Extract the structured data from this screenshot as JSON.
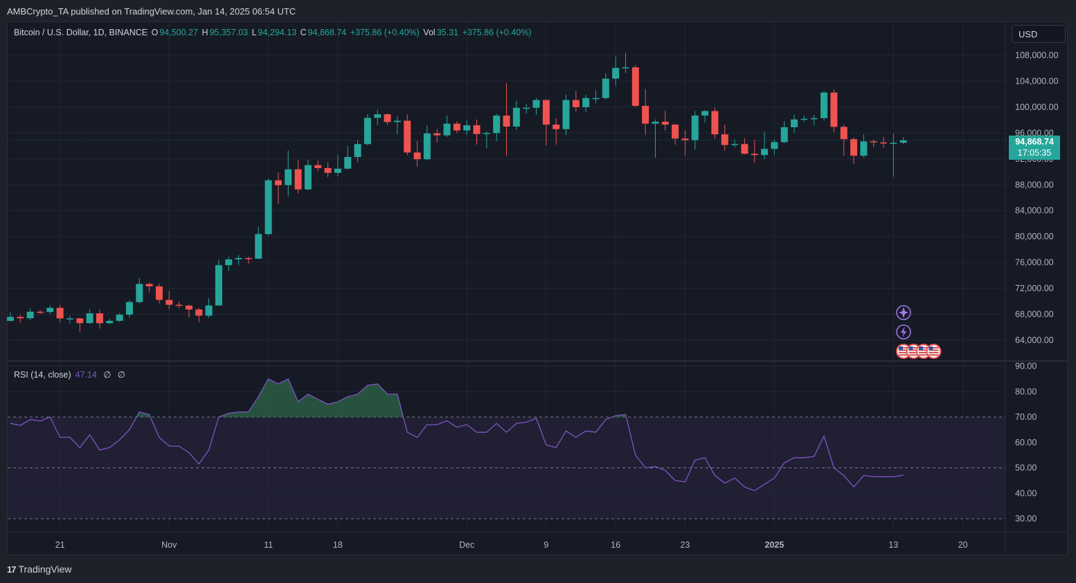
{
  "publisher_line": "AMBCrypto_TA published on TradingView.com, Jan 14, 2025 06:54 UTC",
  "legend": {
    "symbol": "Bitcoin / U.S. Dollar, 1D, BINANCE",
    "o_label": "O",
    "o": "94,500.27",
    "h_label": "H",
    "h": "95,357.03",
    "l_label": "L",
    "l": "94,294.13",
    "c_label": "C",
    "c": "94,868.74",
    "change": "+375.86 (+0.40%)",
    "vol_label": "Vol",
    "vol": "35.31",
    "vol_change": "+375.86 (+0.40%)"
  },
  "currency_button": "USD",
  "last_price": {
    "price": "94,868.74",
    "countdown": "17:05:35"
  },
  "rsi_legend": {
    "title": "RSI (14, close)",
    "value": "47.14",
    "ph1": "∅",
    "ph2": "∅"
  },
  "footer": {
    "logo": "17",
    "brand": "TradingView"
  },
  "colors": {
    "up": "#26a69a",
    "down": "#ef5350",
    "rsi_line": "#7e57c2",
    "rsi_band": "#2a2340",
    "rsi_overbought_fill": "#2e6b4a",
    "background": "#161a25",
    "grid": "#232734"
  },
  "icons": [
    "sparkle-event-icon",
    "lightning-event-icon",
    "us-flag-event-icon",
    "us-flag-event-icon",
    "us-flag-event-icon",
    "us-flag-event-icon"
  ],
  "chart_data": [
    {
      "type": "candlestick",
      "title": "Bitcoin / U.S. Dollar, 1D, BINANCE",
      "ylim": [
        62000,
        110500
      ],
      "grid": true,
      "y_ticks": [
        "64,000.00",
        "68,000.00",
        "72,000.00",
        "76,000.00",
        "80,000.00",
        "84,000.00",
        "88,000.00",
        "92,000.00",
        "96,000.00",
        "100,000.00",
        "104,000.00",
        "108,000.00"
      ],
      "y_tick_values": [
        64000,
        68000,
        72000,
        76000,
        80000,
        84000,
        88000,
        92000,
        96000,
        100000,
        104000,
        108000
      ],
      "x_ticks": [
        {
          "label": "21",
          "date": "2024-10-21"
        },
        {
          "label": "Nov",
          "date": "2024-11-01"
        },
        {
          "label": "11",
          "date": "2024-11-11"
        },
        {
          "label": "18",
          "date": "2024-11-18"
        },
        {
          "label": "Dec",
          "date": "2024-12-01"
        },
        {
          "label": "9",
          "date": "2024-12-09"
        },
        {
          "label": "16",
          "date": "2024-12-16"
        },
        {
          "label": "23",
          "date": "2024-12-23"
        },
        {
          "label": "2025",
          "date": "2025-01-01"
        },
        {
          "label": "13",
          "date": "2025-01-13"
        },
        {
          "label": "20",
          "date": "2025-01-20"
        }
      ],
      "columns": [
        "date",
        "open",
        "high",
        "low",
        "close"
      ],
      "candles": [
        [
          "2024-10-16",
          67000,
          68400,
          66900,
          67600
        ],
        [
          "2024-10-17",
          67600,
          67900,
          66700,
          67400
        ],
        [
          "2024-10-18",
          67400,
          68900,
          67100,
          68400
        ],
        [
          "2024-10-19",
          68400,
          68700,
          68100,
          68360
        ],
        [
          "2024-10-20",
          68360,
          69400,
          68100,
          69000
        ],
        [
          "2024-10-21",
          69000,
          69500,
          66800,
          67370
        ],
        [
          "2024-10-22",
          67370,
          67800,
          66600,
          67380
        ],
        [
          "2024-10-23",
          67380,
          67450,
          65300,
          66650
        ],
        [
          "2024-10-24",
          66650,
          68800,
          66500,
          68160
        ],
        [
          "2024-10-25",
          68160,
          68700,
          65800,
          66630
        ],
        [
          "2024-10-26",
          66630,
          67300,
          66500,
          67000
        ],
        [
          "2024-10-27",
          67000,
          68200,
          66800,
          67950
        ],
        [
          "2024-10-28",
          67950,
          70200,
          67500,
          69900
        ],
        [
          "2024-10-29",
          69900,
          73600,
          69700,
          72700
        ],
        [
          "2024-10-30",
          72700,
          72900,
          71400,
          72330
        ],
        [
          "2024-10-31",
          72330,
          72700,
          69700,
          70230
        ],
        [
          "2024-11-01",
          70230,
          71600,
          68800,
          69480
        ],
        [
          "2024-11-02",
          69480,
          70000,
          69000,
          69350
        ],
        [
          "2024-11-03",
          69350,
          69500,
          67500,
          68750
        ],
        [
          "2024-11-04",
          68750,
          69000,
          66800,
          67800
        ],
        [
          "2024-11-05",
          67800,
          70500,
          67500,
          69370
        ],
        [
          "2024-11-06",
          69370,
          76400,
          69300,
          75600
        ],
        [
          "2024-11-07",
          75600,
          76900,
          74700,
          76500
        ],
        [
          "2024-11-08",
          76500,
          77200,
          75600,
          76700
        ],
        [
          "2024-11-09",
          76700,
          76900,
          75800,
          76600
        ],
        [
          "2024-11-10",
          76600,
          81500,
          76500,
          80400
        ],
        [
          "2024-11-11",
          80400,
          89000,
          80200,
          88700
        ],
        [
          "2024-11-12",
          88700,
          89900,
          85100,
          87950
        ],
        [
          "2024-11-13",
          87950,
          93300,
          86200,
          90400
        ],
        [
          "2024-11-14",
          90400,
          91800,
          86700,
          87300
        ],
        [
          "2024-11-15",
          87300,
          91900,
          87100,
          91050
        ],
        [
          "2024-11-16",
          91050,
          91800,
          90100,
          90600
        ],
        [
          "2024-11-17",
          90600,
          91500,
          89200,
          89850
        ],
        [
          "2024-11-18",
          89850,
          92600,
          89300,
          90500
        ],
        [
          "2024-11-19",
          90500,
          94000,
          90400,
          92300
        ],
        [
          "2024-11-20",
          92300,
          94900,
          91500,
          94300
        ],
        [
          "2024-11-21",
          94300,
          98900,
          94100,
          98350
        ],
        [
          "2024-11-22",
          98350,
          99600,
          97200,
          98900
        ],
        [
          "2024-11-23",
          98900,
          99000,
          97300,
          97700
        ],
        [
          "2024-11-24",
          97700,
          98600,
          95800,
          97900
        ],
        [
          "2024-11-25",
          97900,
          98900,
          92600,
          93000
        ],
        [
          "2024-11-26",
          93000,
          94800,
          90800,
          91950
        ],
        [
          "2024-11-27",
          91950,
          97200,
          91800,
          95950
        ],
        [
          "2024-11-28",
          95950,
          96650,
          94600,
          95650
        ],
        [
          "2024-11-29",
          95650,
          98700,
          95400,
          97450
        ],
        [
          "2024-11-30",
          97450,
          97800,
          96000,
          96400
        ],
        [
          "2024-12-01",
          96400,
          98000,
          95700,
          97200
        ],
        [
          "2024-12-02",
          97200,
          98100,
          94200,
          95850
        ],
        [
          "2024-12-03",
          95850,
          96300,
          93600,
          96000
        ],
        [
          "2024-12-04",
          96000,
          99000,
          94700,
          98700
        ],
        [
          "2024-12-05",
          98700,
          103700,
          92500,
          97000
        ],
        [
          "2024-12-06",
          97000,
          101000,
          96500,
          99900
        ],
        [
          "2024-12-07",
          99900,
          100500,
          99000,
          99900
        ],
        [
          "2024-12-08",
          99900,
          101400,
          98800,
          101100
        ],
        [
          "2024-12-09",
          101100,
          101200,
          94100,
          97300
        ],
        [
          "2024-12-10",
          97300,
          98300,
          94200,
          96600
        ],
        [
          "2024-12-11",
          96600,
          101900,
          95700,
          101100
        ],
        [
          "2024-12-12",
          101100,
          102500,
          99300,
          100000
        ],
        [
          "2024-12-13",
          100000,
          101900,
          99200,
          101400
        ],
        [
          "2024-12-14",
          101400,
          102600,
          100600,
          101400
        ],
        [
          "2024-12-15",
          101400,
          105200,
          101200,
          104400
        ],
        [
          "2024-12-16",
          104400,
          107800,
          103300,
          106050
        ],
        [
          "2024-12-17",
          106050,
          108350,
          105300,
          106150
        ],
        [
          "2024-12-18",
          106150,
          106500,
          100000,
          100200
        ],
        [
          "2024-12-19",
          100200,
          102800,
          95700,
          97450
        ],
        [
          "2024-12-20",
          97450,
          98100,
          92200,
          97750
        ],
        [
          "2024-12-21",
          97750,
          99500,
          96400,
          97300
        ],
        [
          "2024-12-22",
          97300,
          97400,
          94200,
          95150
        ],
        [
          "2024-12-23",
          95150,
          96400,
          92500,
          94900
        ],
        [
          "2024-12-24",
          94900,
          99400,
          93400,
          98700
        ],
        [
          "2024-12-25",
          98700,
          99500,
          97600,
          99400
        ],
        [
          "2024-12-26",
          99400,
          99900,
          95100,
          95800
        ],
        [
          "2024-12-27",
          95800,
          97300,
          93300,
          94150
        ],
        [
          "2024-12-28",
          94150,
          95000,
          93800,
          94300
        ],
        [
          "2024-12-29",
          94300,
          95200,
          92700,
          92800
        ],
        [
          "2024-12-30",
          92800,
          94900,
          91400,
          92600
        ],
        [
          "2024-12-31",
          92600,
          96200,
          92000,
          93550
        ],
        [
          "2025-01-01",
          93550,
          95000,
          92700,
          94600
        ],
        [
          "2025-01-02",
          94600,
          97800,
          94400,
          96900
        ],
        [
          "2025-01-03",
          96900,
          98900,
          96000,
          98100
        ],
        [
          "2025-01-04",
          98100,
          98700,
          97700,
          98200
        ],
        [
          "2025-01-05",
          98200,
          98800,
          97200,
          98300
        ],
        [
          "2025-01-06",
          98300,
          102500,
          97900,
          102250
        ],
        [
          "2025-01-07",
          102250,
          102700,
          96100,
          96950
        ],
        [
          "2025-01-08",
          96950,
          97300,
          92500,
          95050
        ],
        [
          "2025-01-09",
          95050,
          95300,
          91200,
          92500
        ],
        [
          "2025-01-10",
          92500,
          95800,
          92200,
          94700
        ],
        [
          "2025-01-11",
          94700,
          95000,
          93800,
          94550
        ],
        [
          "2025-01-12",
          94550,
          95400,
          93700,
          94500
        ],
        [
          "2025-01-13",
          94500,
          95900,
          89250,
          94500
        ],
        [
          "2025-01-14",
          94500.27,
          95357.03,
          94294.13,
          94868.74
        ]
      ]
    },
    {
      "type": "line",
      "title": "RSI (14, close)",
      "ylim": [
        27,
        92
      ],
      "y_ticks": [
        "30.00",
        "40.00",
        "50.00",
        "60.00",
        "70.00",
        "80.00",
        "90.00"
      ],
      "y_tick_values": [
        30,
        40,
        50,
        60,
        70,
        80,
        90
      ],
      "bands": {
        "upper": 70,
        "middle": 50,
        "lower": 30
      },
      "start_date": "2024-10-16",
      "values": [
        67.5,
        66.7,
        69,
        68.4,
        70,
        62,
        62,
        58,
        63,
        57,
        58,
        61,
        65,
        72,
        71,
        62,
        58.6,
        58.5,
        56,
        51.5,
        57,
        70,
        71.5,
        72,
        72,
        78,
        85,
        83,
        85,
        76,
        79,
        77,
        75,
        76,
        78,
        79,
        82.5,
        83,
        79,
        79,
        64,
        62,
        67,
        67,
        68.5,
        66,
        67,
        64,
        64,
        67.5,
        64,
        67.5,
        68,
        69.5,
        59,
        58,
        64.5,
        62,
        64.5,
        64,
        69,
        70.5,
        71,
        55,
        50,
        50.5,
        49,
        45,
        44.5,
        53,
        54,
        47,
        44,
        46,
        42.5,
        41,
        43.5,
        46,
        52,
        54,
        54,
        54.5,
        62.5,
        50,
        47,
        42.5,
        47,
        46.5,
        46.5,
        46.5,
        47.14
      ]
    }
  ]
}
